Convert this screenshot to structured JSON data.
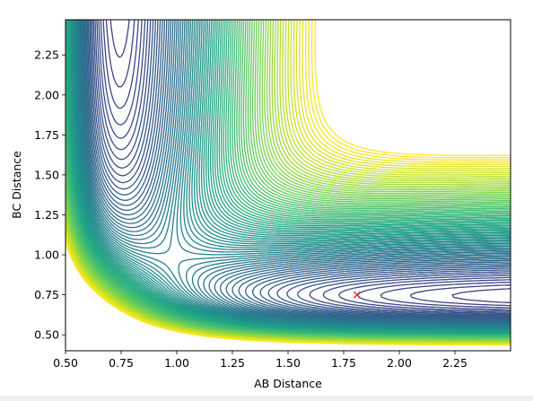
{
  "chart_data": {
    "type": "contour",
    "title": "",
    "xlabel": "AB Distance",
    "ylabel": "BC Distance",
    "xlim": [
      0.5,
      2.5
    ],
    "ylim": [
      0.4,
      2.47
    ],
    "x_ticks": [
      "0.50",
      "0.75",
      "1.00",
      "1.25",
      "1.50",
      "1.75",
      "2.00",
      "2.25"
    ],
    "y_ticks": [
      "0.50",
      "0.75",
      "1.00",
      "1.25",
      "1.50",
      "1.75",
      "2.00",
      "2.25"
    ],
    "x_tick_values": [
      0.5,
      0.75,
      1.0,
      1.25,
      1.5,
      1.75,
      2.0,
      2.25
    ],
    "y_tick_values": [
      0.5,
      0.75,
      1.0,
      1.25,
      1.5,
      1.75,
      2.0,
      2.25
    ],
    "colormap": "viridis",
    "grid": false,
    "legend": "none",
    "colors": {
      "marker": "#d62728",
      "axes": "#000000"
    },
    "marker": {
      "symbol": "x",
      "x": 1.81,
      "y": 0.75
    }
  }
}
